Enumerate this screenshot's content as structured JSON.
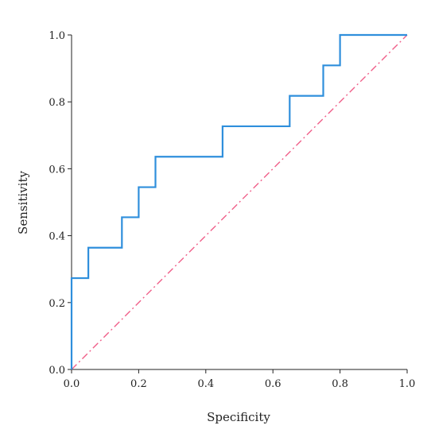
{
  "chart_data": {
    "type": "line",
    "title": "",
    "xlabel": "Specificity",
    "ylabel": "Sensitivity",
    "xlim": [
      0.0,
      1.0
    ],
    "ylim": [
      0.0,
      1.0
    ],
    "x_ticks": [
      0.0,
      0.2,
      0.4,
      0.6,
      0.8,
      1.0
    ],
    "y_ticks": [
      0.0,
      0.2,
      0.4,
      0.6,
      0.8,
      1.0
    ],
    "x_tick_labels": [
      "0.0",
      "0.2",
      "0.4",
      "0.6",
      "0.8",
      "1.0"
    ],
    "y_tick_labels": [
      "0.0",
      "0.2",
      "0.4",
      "0.6",
      "0.8",
      "1.0"
    ],
    "grid": false,
    "legend": "none",
    "series": [
      {
        "style": "step",
        "color": "#2f8fdc",
        "x": [
          0.0,
          0.0,
          0.05,
          0.05,
          0.15,
          0.15,
          0.2,
          0.2,
          0.25,
          0.25,
          0.45,
          0.45,
          0.65,
          0.65,
          0.75,
          0.75,
          0.8,
          0.8,
          1.0
        ],
        "y": [
          0.0,
          0.273,
          0.273,
          0.364,
          0.364,
          0.455,
          0.455,
          0.545,
          0.545,
          0.636,
          0.636,
          0.727,
          0.727,
          0.818,
          0.818,
          0.909,
          0.909,
          1.0,
          1.0
        ]
      },
      {
        "style": "dash-dot",
        "color": "#f0608a",
        "x": [
          0.0,
          1.0
        ],
        "y": [
          0.0,
          1.0
        ]
      }
    ]
  }
}
